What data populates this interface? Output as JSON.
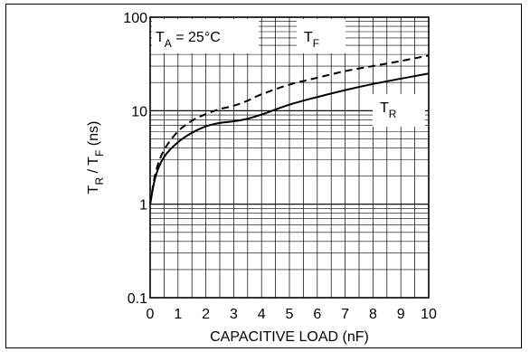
{
  "chart_data": {
    "type": "line",
    "title": "",
    "xlabel": "CAPACITIVE LOAD (nF)",
    "ylabel": {
      "main": "T",
      "sub1": "R",
      "slash": " / T",
      "sub2": "F",
      "unit": " (ns)"
    },
    "xlim": [
      0,
      10
    ],
    "ylim": [
      0.1,
      100
    ],
    "yscale": "log",
    "x_ticks": [
      "0",
      "1",
      "2",
      "3",
      "4",
      "5",
      "6",
      "7",
      "8",
      "9",
      "10"
    ],
    "y_ticks": [
      "0.1",
      "1",
      "10",
      "100"
    ],
    "grid": true,
    "annotations": {
      "condition": {
        "main": "T",
        "sub": "A",
        "rest": " = 25°C"
      },
      "tf_label": {
        "main": "T",
        "sub": "F"
      },
      "tr_label": {
        "main": "T",
        "sub": "R"
      }
    },
    "series": [
      {
        "name": "TF",
        "style": "dashed",
        "x": [
          0,
          0.2,
          0.5,
          1,
          1.5,
          2,
          2.5,
          3,
          3.5,
          4,
          5,
          6,
          7,
          8,
          9,
          10
        ],
        "y": [
          1.0,
          2.2,
          3.8,
          6.0,
          7.8,
          9.2,
          10.4,
          11.3,
          12.8,
          15.0,
          19.0,
          22.5,
          26.5,
          30.0,
          34.0,
          39.0
        ]
      },
      {
        "name": "TR",
        "style": "solid",
        "x": [
          0,
          0.2,
          0.5,
          1,
          1.5,
          2,
          2.5,
          3,
          3.5,
          4,
          5,
          6,
          7,
          8,
          9,
          10
        ],
        "y": [
          1.0,
          2.0,
          3.2,
          4.6,
          5.8,
          6.8,
          7.4,
          7.7,
          8.2,
          9.1,
          11.6,
          14.0,
          16.6,
          19.3,
          22.0,
          25.0
        ]
      }
    ]
  }
}
